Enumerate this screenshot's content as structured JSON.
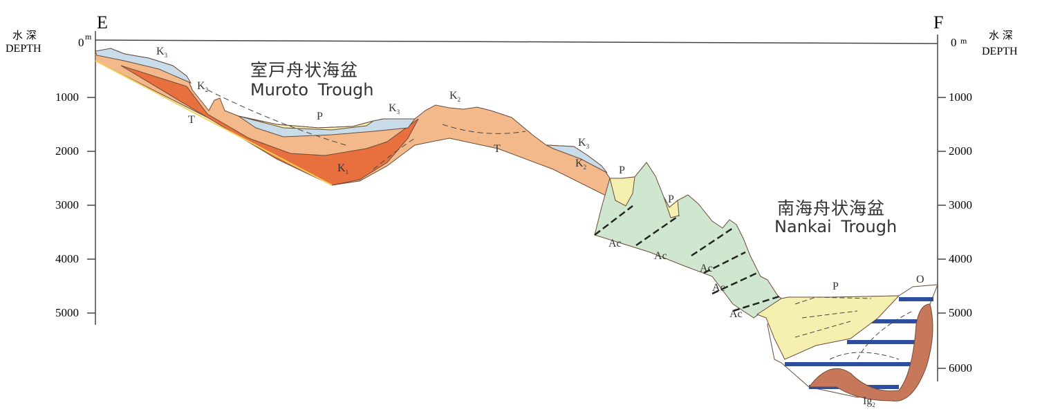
{
  "section": {
    "left_end": "E",
    "right_end": "F",
    "depth_label_jp": "水 深",
    "depth_label_en": "DEPTH",
    "unit": "m",
    "zero": "0",
    "ticks": [
      "1000",
      "2000",
      "3000",
      "4000",
      "5000",
      "6000"
    ]
  },
  "basins": {
    "muroto_jp": "室戸舟状海盆",
    "muroto_en": "Muroto Trough",
    "nankai_jp": "南海舟状海盆",
    "nankai_en": "Nankai Trough"
  },
  "units": {
    "K3": "K",
    "K3_sub": "3",
    "K2": "K",
    "K2_sub": "2",
    "K1": "K",
    "K1_sub": "1",
    "T": "T",
    "P": "P",
    "Ac": "Ac",
    "O": "O",
    "Ig2": "Ig",
    "Ig2_sub": "2"
  },
  "colors": {
    "K3": "#c9dcea",
    "K2": "#f3b98a",
    "K1": "#e8703e",
    "P": "#f5f0b0",
    "Ac": "#cfe6cf",
    "Ig2": "#c8785a",
    "stripe": "#2c4da0"
  }
}
